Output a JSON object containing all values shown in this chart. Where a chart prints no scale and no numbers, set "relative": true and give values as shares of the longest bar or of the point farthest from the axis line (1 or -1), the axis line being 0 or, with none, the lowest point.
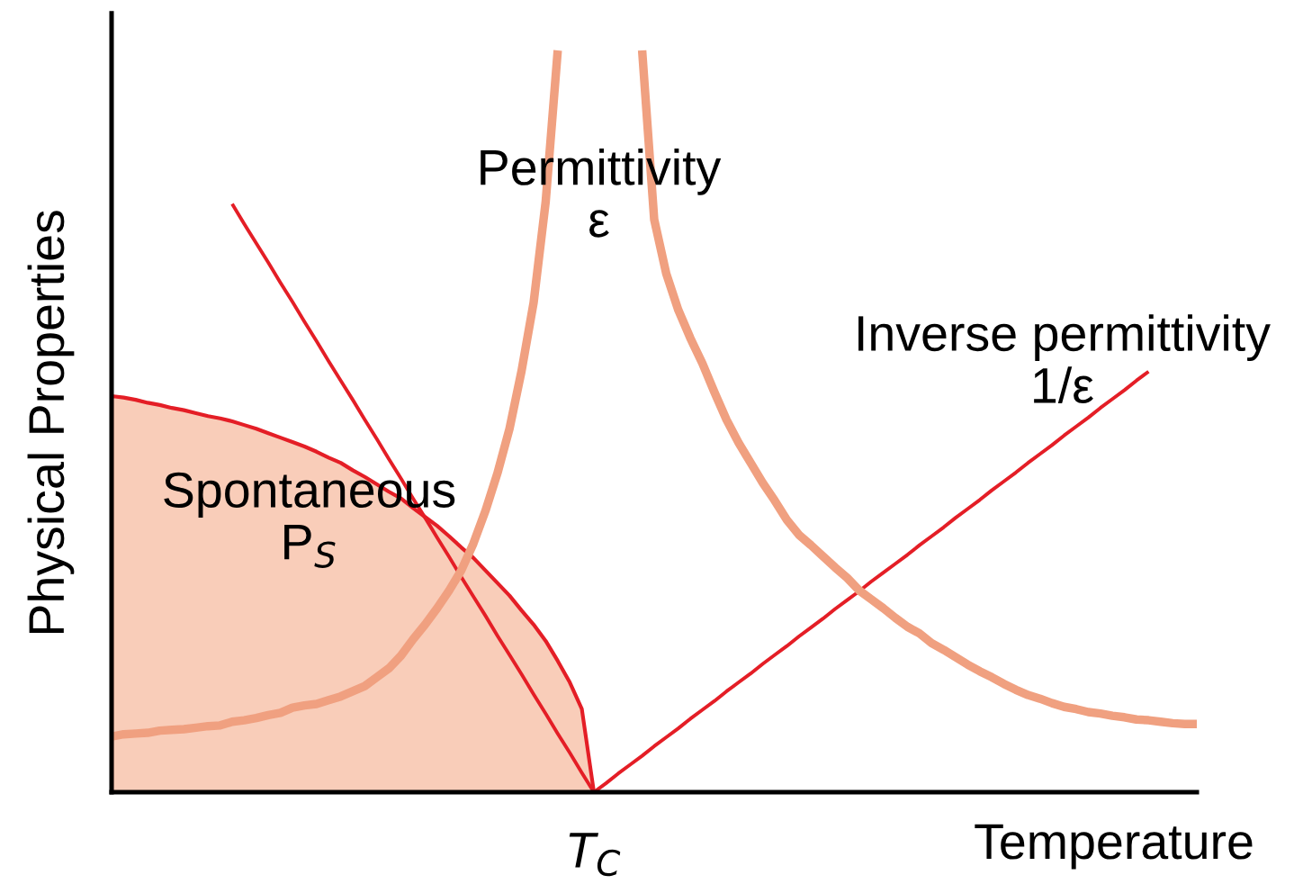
{
  "chart_data": {
    "type": "line",
    "xlabel": "Temperature",
    "ylabel": "Physical Properties",
    "relative": true,
    "categories": [
      null,
      null,
      null,
      null,
      null,
      null,
      null,
      null,
      null,
      null,
      null,
      null,
      null,
      null,
      null,
      null,
      null,
      null,
      null,
      null,
      null,
      null,
      null,
      null,
      null,
      null,
      null,
      null,
      null,
      null,
      null,
      null,
      null,
      null,
      null,
      null,
      null,
      null,
      null,
      null,
      null,
      null,
      null,
      null,
      null,
      null,
      null,
      null,
      null,
      null,
      null,
      null,
      null,
      null,
      null,
      null,
      null,
      null,
      null,
      null,
      null,
      null,
      null,
      null,
      null,
      null,
      null,
      null,
      null,
      null,
      null,
      null,
      null,
      null,
      null,
      null,
      null,
      null,
      null,
      null,
      null,
      null,
      null,
      null,
      null,
      null,
      null,
      null,
      null,
      null,
      null
    ],
    "annotations": [
      "T$_{C}$"
    ],
    "series": [
      {
        "type": "area",
        "name": "Spontaneous\nP$_{S}$",
        "color": "#f9cdb9",
        "values": [
          0.534,
          0.532,
          0.529,
          0.525,
          0.522,
          0.518,
          0.515,
          0.511,
          0.507,
          0.504,
          0.5,
          0.495,
          0.49,
          0.484,
          0.478,
          0.472,
          0.466,
          0.459,
          0.451,
          0.444,
          0.434,
          0.425,
          0.415,
          0.405,
          0.396,
          0.383,
          0.371,
          0.359,
          0.345,
          0.33,
          0.316,
          0.299,
          0.282,
          0.265,
          0.245,
          0.226,
          0.204,
          0.177,
          0.148,
          0.112,
          0,
          null,
          null,
          null,
          null,
          null,
          null,
          null,
          null,
          null,
          null,
          null,
          null,
          null,
          null,
          null,
          null,
          null,
          null,
          null,
          null,
          null,
          null,
          null,
          null,
          null,
          null,
          null,
          null,
          null,
          null,
          null,
          null,
          null,
          null,
          null,
          null,
          null,
          null,
          null,
          null,
          null,
          null,
          null,
          null,
          null,
          null,
          null,
          null,
          null,
          null
        ]
      },
      {
        "name": "Inverse permittivity\n1/ε",
        "color": "#e41e26",
        "values": [
          null,
          null,
          null,
          null,
          null,
          null,
          null,
          null,
          null,
          null,
          0.793,
          0.766,
          0.74,
          0.714,
          0.687,
          0.661,
          0.634,
          0.608,
          0.581,
          0.555,
          0.529,
          0.502,
          0.476,
          0.449,
          0.423,
          0.396,
          0.37,
          0.343,
          0.317,
          0.29,
          0.264,
          0.238,
          0.211,
          0.185,
          0.159,
          0.132,
          0.106,
          0.079,
          0.053,
          0.026,
          0,
          0.012,
          0.025,
          0.037,
          0.049,
          0.062,
          0.074,
          0.086,
          0.099,
          0.111,
          0.123,
          0.136,
          0.148,
          0.16,
          0.173,
          0.185,
          0.197,
          0.21,
          0.222,
          0.234,
          0.247,
          0.259,
          0.271,
          0.284,
          0.296,
          0.308,
          0.32,
          0.333,
          0.345,
          0.357,
          0.37,
          0.382,
          0.394,
          0.407,
          0.419,
          0.431,
          0.444,
          0.456,
          0.468,
          0.481,
          0.493,
          0.505,
          0.518,
          0.53,
          0.542,
          0.555,
          0.567,
          null,
          null,
          null,
          null
        ]
      },
      {
        "name": "Permittivity\nε",
        "color": "#f0a080",
        "values": [
          0.075,
          0.078,
          0.079,
          0.08,
          0.083,
          0.084,
          0.085,
          0.087,
          0.089,
          0.09,
          0.095,
          0.097,
          0.1,
          0.104,
          0.107,
          0.114,
          0.117,
          0.119,
          0.124,
          0.129,
          0.136,
          0.143,
          0.155,
          0.167,
          0.184,
          0.206,
          0.226,
          0.248,
          0.272,
          0.299,
          0.335,
          0.379,
          0.43,
          0.49,
          0.568,
          0.66,
          0.796,
          1,
          null,
          null,
          null,
          null,
          null,
          null,
          1,
          0.772,
          0.699,
          0.65,
          0.612,
          0.578,
          0.539,
          0.502,
          0.471,
          0.444,
          0.417,
          0.393,
          0.367,
          0.347,
          0.333,
          0.318,
          0.303,
          0.289,
          0.272,
          0.26,
          0.248,
          0.235,
          0.223,
          0.214,
          0.201,
          0.192,
          0.182,
          0.172,
          0.163,
          0.155,
          0.146,
          0.138,
          0.131,
          0.126,
          0.12,
          0.115,
          0.112,
          0.108,
          0.106,
          0.103,
          0.101,
          0.098,
          0.097,
          0.095,
          0.093,
          0.092,
          0.092
        ]
      }
    ]
  }
}
